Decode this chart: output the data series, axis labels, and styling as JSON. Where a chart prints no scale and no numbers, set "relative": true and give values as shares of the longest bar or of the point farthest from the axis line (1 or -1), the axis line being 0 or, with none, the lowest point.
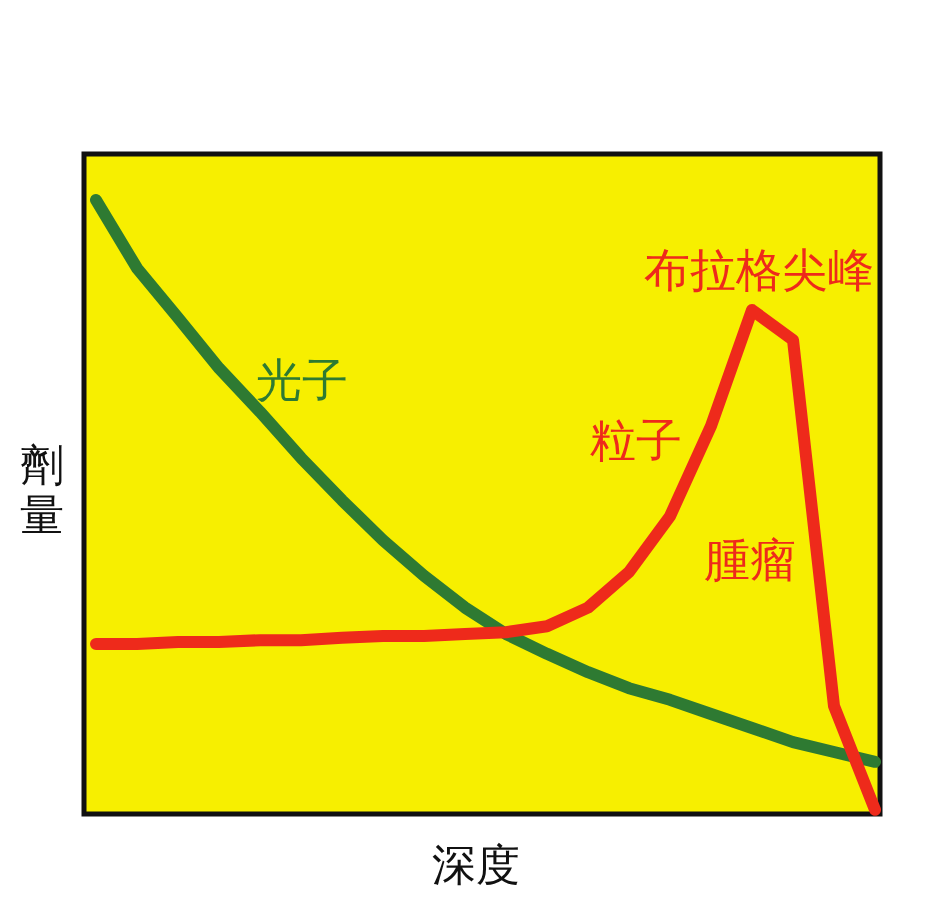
{
  "chart_data": {
    "type": "line",
    "relative": true,
    "xlabel": "深度",
    "ylabel": "劑量",
    "categories": [
      null,
      null,
      null,
      null,
      null,
      null,
      null,
      null,
      null,
      null,
      null,
      null,
      null,
      null,
      null,
      null,
      null,
      null,
      null,
      null
    ],
    "series": [
      {
        "name": "光子",
        "color": "#2e7a32",
        "values": [
          1,
          0.889,
          0.808,
          0.726,
          0.655,
          0.58,
          0.511,
          0.446,
          0.388,
          0.336,
          0.293,
          0.261,
          0.231,
          0.205,
          0.186,
          0.163,
          0.14,
          0.117,
          0.101,
          0.085
        ]
      },
      {
        "name": "粒子",
        "color": "#ee2a1b",
        "values": [
          0.277,
          0.277,
          0.28,
          0.28,
          0.283,
          0.283,
          0.287,
          0.29,
          0.29,
          0.293,
          0.296,
          0.306,
          0.336,
          0.394,
          0.485,
          0.632,
          0.821,
          0.772,
          0.176,
          0.007
        ]
      }
    ],
    "annotations": [
      "布拉格尖峰",
      "腫瘤"
    ],
    "line_style": "solid"
  }
}
